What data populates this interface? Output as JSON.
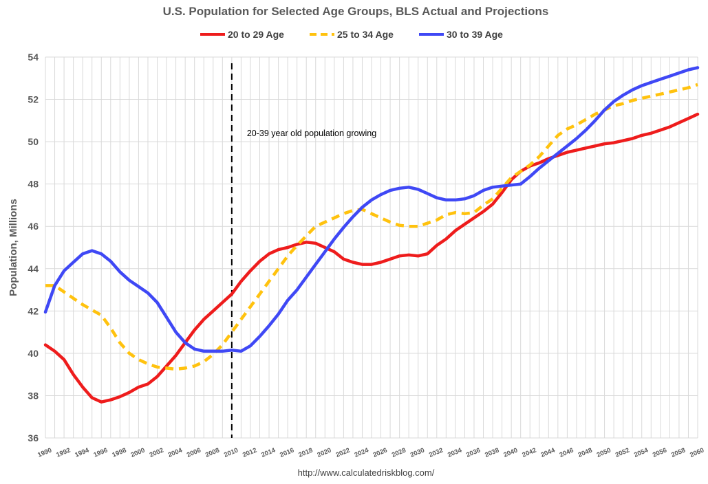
{
  "colors": {
    "series_20_29": "#ee1c1c",
    "series_25_34": "#ffc20e",
    "series_30_39": "#3f48f5",
    "grid": "#d9d9d9",
    "text": "#595959"
  },
  "chart_data": {
    "type": "line",
    "title": "U.S. Population for Selected Age Groups, BLS Actual and Projections",
    "xlabel": "",
    "ylabel": "Population, Millions",
    "source": "http://www.calculatedriskblog.com/",
    "annotation": "20-39 year old population growing",
    "marker_year": 2010,
    "xlim": [
      1990,
      2060
    ],
    "ylim": [
      36,
      54
    ],
    "yticks": [
      "36",
      "38",
      "40",
      "42",
      "44",
      "46",
      "48",
      "50",
      "52",
      "54"
    ],
    "xticks": [
      "1990",
      "1992",
      "1994",
      "1996",
      "1998",
      "2000",
      "2002",
      "2004",
      "2006",
      "2008",
      "2010",
      "2012",
      "2014",
      "2016",
      "2018",
      "2020",
      "2022",
      "2024",
      "2026",
      "2028",
      "2030",
      "2032",
      "2034",
      "2036",
      "2038",
      "2040",
      "2042",
      "2044",
      "2046",
      "2048",
      "2050",
      "2052",
      "2054",
      "2056",
      "2058",
      "2060"
    ],
    "x": [
      1990,
      1991,
      1992,
      1993,
      1994,
      1995,
      1996,
      1997,
      1998,
      1999,
      2000,
      2001,
      2002,
      2003,
      2004,
      2005,
      2006,
      2007,
      2008,
      2009,
      2010,
      2011,
      2012,
      2013,
      2014,
      2015,
      2016,
      2017,
      2018,
      2019,
      2020,
      2021,
      2022,
      2023,
      2024,
      2025,
      2026,
      2027,
      2028,
      2029,
      2030,
      2031,
      2032,
      2033,
      2034,
      2035,
      2036,
      2037,
      2038,
      2039,
      2040,
      2041,
      2042,
      2043,
      2044,
      2045,
      2046,
      2047,
      2048,
      2049,
      2050,
      2051,
      2052,
      2053,
      2054,
      2055,
      2056,
      2057,
      2058,
      2059,
      2060
    ],
    "series": [
      {
        "name": "20 to 29 Age",
        "style": "solid",
        "values": [
          40.4,
          40.1,
          39.7,
          39.0,
          38.4,
          37.9,
          37.7,
          37.8,
          37.95,
          38.15,
          38.4,
          38.55,
          38.9,
          39.4,
          39.9,
          40.5,
          41.1,
          41.6,
          42.0,
          42.4,
          42.8,
          43.4,
          43.9,
          44.35,
          44.7,
          44.9,
          45.0,
          45.15,
          45.25,
          45.2,
          45.0,
          44.8,
          44.45,
          44.3,
          44.2,
          44.2,
          44.3,
          44.45,
          44.6,
          44.65,
          44.6,
          44.7,
          45.1,
          45.4,
          45.8,
          46.1,
          46.4,
          46.7,
          47.05,
          47.6,
          48.2,
          48.6,
          48.85,
          49.0,
          49.2,
          49.35,
          49.5,
          49.6,
          49.7,
          49.8,
          49.9,
          49.95,
          50.05,
          50.15,
          50.3,
          50.4,
          50.55,
          50.7,
          50.9,
          51.1,
          51.3
        ]
      },
      {
        "name": "25 to 34 Age",
        "style": "dashed",
        "values": [
          43.2,
          43.2,
          42.9,
          42.6,
          42.3,
          42.05,
          41.8,
          41.2,
          40.5,
          40.0,
          39.7,
          39.5,
          39.35,
          39.3,
          39.25,
          39.3,
          39.4,
          39.6,
          39.95,
          40.4,
          41.0,
          41.6,
          42.2,
          42.8,
          43.4,
          44.0,
          44.6,
          45.1,
          45.55,
          46.0,
          46.2,
          46.4,
          46.6,
          46.75,
          46.8,
          46.6,
          46.4,
          46.2,
          46.05,
          46.0,
          46.0,
          46.15,
          46.3,
          46.55,
          46.65,
          46.6,
          46.65,
          47.0,
          47.3,
          47.8,
          48.3,
          48.6,
          48.9,
          49.3,
          49.8,
          50.3,
          50.6,
          50.8,
          51.05,
          51.3,
          51.5,
          51.7,
          51.8,
          51.95,
          52.05,
          52.15,
          52.25,
          52.35,
          52.45,
          52.55,
          52.7
        ]
      },
      {
        "name": "30 to 39 Age",
        "style": "solid",
        "values": [
          41.95,
          43.2,
          43.9,
          44.3,
          44.7,
          44.85,
          44.7,
          44.35,
          43.85,
          43.45,
          43.15,
          42.85,
          42.4,
          41.7,
          41.0,
          40.5,
          40.2,
          40.1,
          40.1,
          40.1,
          40.15,
          40.1,
          40.35,
          40.8,
          41.3,
          41.85,
          42.5,
          43.0,
          43.6,
          44.2,
          44.8,
          45.4,
          45.95,
          46.45,
          46.9,
          47.25,
          47.5,
          47.7,
          47.8,
          47.85,
          47.75,
          47.55,
          47.35,
          47.25,
          47.25,
          47.3,
          47.45,
          47.7,
          47.85,
          47.9,
          47.95,
          48.0,
          48.35,
          48.75,
          49.1,
          49.45,
          49.8,
          50.15,
          50.55,
          51.0,
          51.5,
          51.9,
          52.2,
          52.45,
          52.65,
          52.8,
          52.95,
          53.1,
          53.25,
          53.4,
          53.5
        ]
      }
    ]
  }
}
